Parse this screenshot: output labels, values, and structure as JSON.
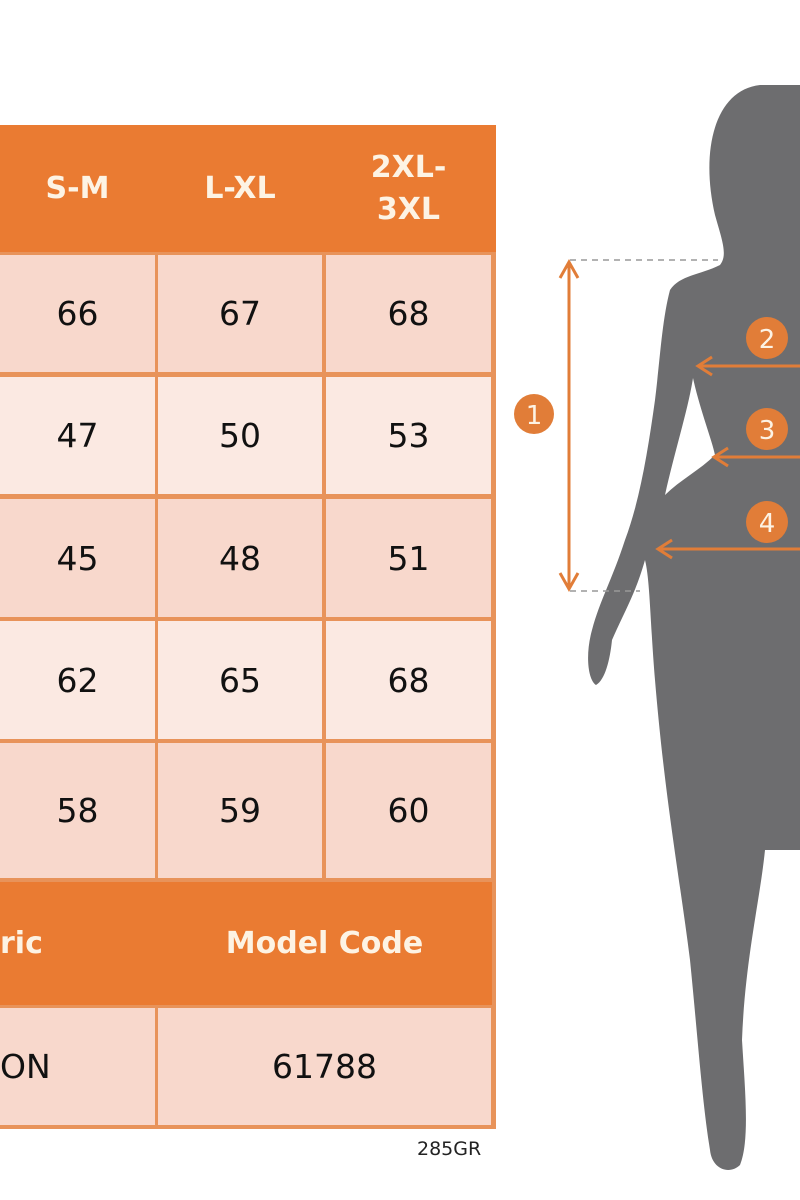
{
  "size_table": {
    "headers": [
      "S-M",
      "L-XL",
      "2XL-\n3XL"
    ],
    "rows": [
      [
        "66",
        "67",
        "68"
      ],
      [
        "47",
        "50",
        "53"
      ],
      [
        "45",
        "48",
        "51"
      ],
      [
        "62",
        "65",
        "68"
      ],
      [
        "58",
        "59",
        "60"
      ]
    ]
  },
  "info_table": {
    "headers": [
      "ric",
      "Model Code"
    ],
    "values": [
      "ON",
      "61788"
    ]
  },
  "chart_code": "285GR",
  "figure": {
    "markers": [
      "1",
      "2",
      "3",
      "4"
    ]
  },
  "colors": {
    "accent": "#ea7b32",
    "row_dark": "#f8d8cc",
    "row_light": "#fbe9e2",
    "silhouette": "#6d6d6f"
  }
}
